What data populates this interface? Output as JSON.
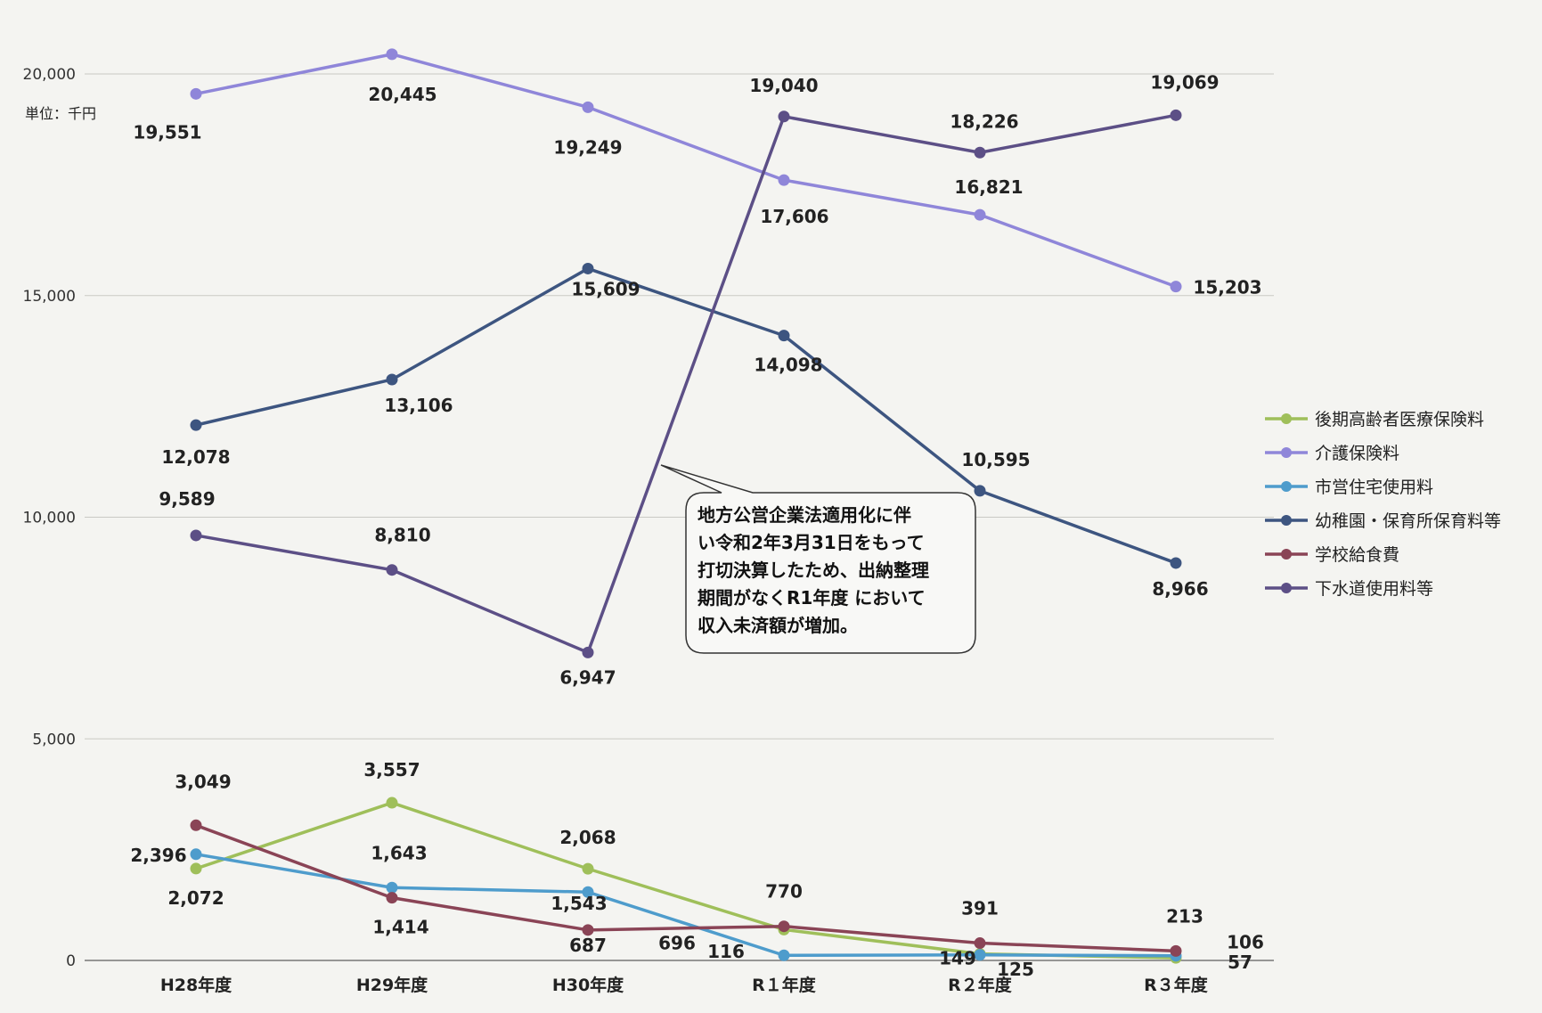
{
  "chart_data": {
    "type": "line",
    "unit_label": "単位：千円",
    "categories": [
      "H28年度",
      "H29年度",
      "H30年度",
      "R１年度",
      "R２年度",
      "R３年度"
    ],
    "ylim": [
      0,
      20000
    ],
    "yticks": [
      "0",
      "5,000",
      "10,000",
      "15,000",
      "20,000"
    ],
    "series": [
      {
        "name": "後期高齢者医療保険料",
        "color": "#9fbf5a",
        "values": [
          2072,
          3557,
          2068,
          696,
          149,
          57
        ],
        "labels": [
          "2,072",
          "3,557",
          "2,068",
          "696",
          "149",
          "57"
        ]
      },
      {
        "name": "介護保険料",
        "color": "#8f86d9",
        "values": [
          19551,
          20445,
          19249,
          17606,
          16821,
          15203
        ],
        "labels": [
          "19,551",
          "20,445",
          "19,249",
          "17,606",
          "16,821",
          "15,203"
        ]
      },
      {
        "name": "市営住宅使用料",
        "color": "#4e9ccc",
        "values": [
          2396,
          1643,
          1543,
          116,
          125,
          106
        ],
        "labels": [
          "2,396",
          "1,643",
          "1,543",
          "116",
          "125",
          "106"
        ]
      },
      {
        "name": "幼稚園・保育所保育料等",
        "color": "#3d5580",
        "values": [
          12078,
          13106,
          15609,
          14098,
          10595,
          8966
        ],
        "labels": [
          "12,078",
          "13,106",
          "15,609",
          "14,098",
          "10,595",
          "8,966"
        ]
      },
      {
        "name": "学校給食費",
        "color": "#8a4456",
        "values": [
          3049,
          1414,
          687,
          770,
          391,
          213
        ],
        "labels": [
          "3,049",
          "1,414",
          "687",
          "770",
          "391",
          "213"
        ]
      },
      {
        "name": "下水道使用料等",
        "color": "#5c4f86",
        "values": [
          9589,
          8810,
          6947,
          19040,
          18226,
          19069
        ],
        "labels": [
          "9,589",
          "8,810",
          "6,947",
          "19,040",
          "18,226",
          "19,069"
        ]
      }
    ],
    "annotation": [
      "地方公営企業法適用化に伴",
      "い令和2年3月31日をもって",
      "打切決算したため、出納整理",
      "期間がなくR1年度 において",
      "収入未済額が増加。"
    ]
  }
}
